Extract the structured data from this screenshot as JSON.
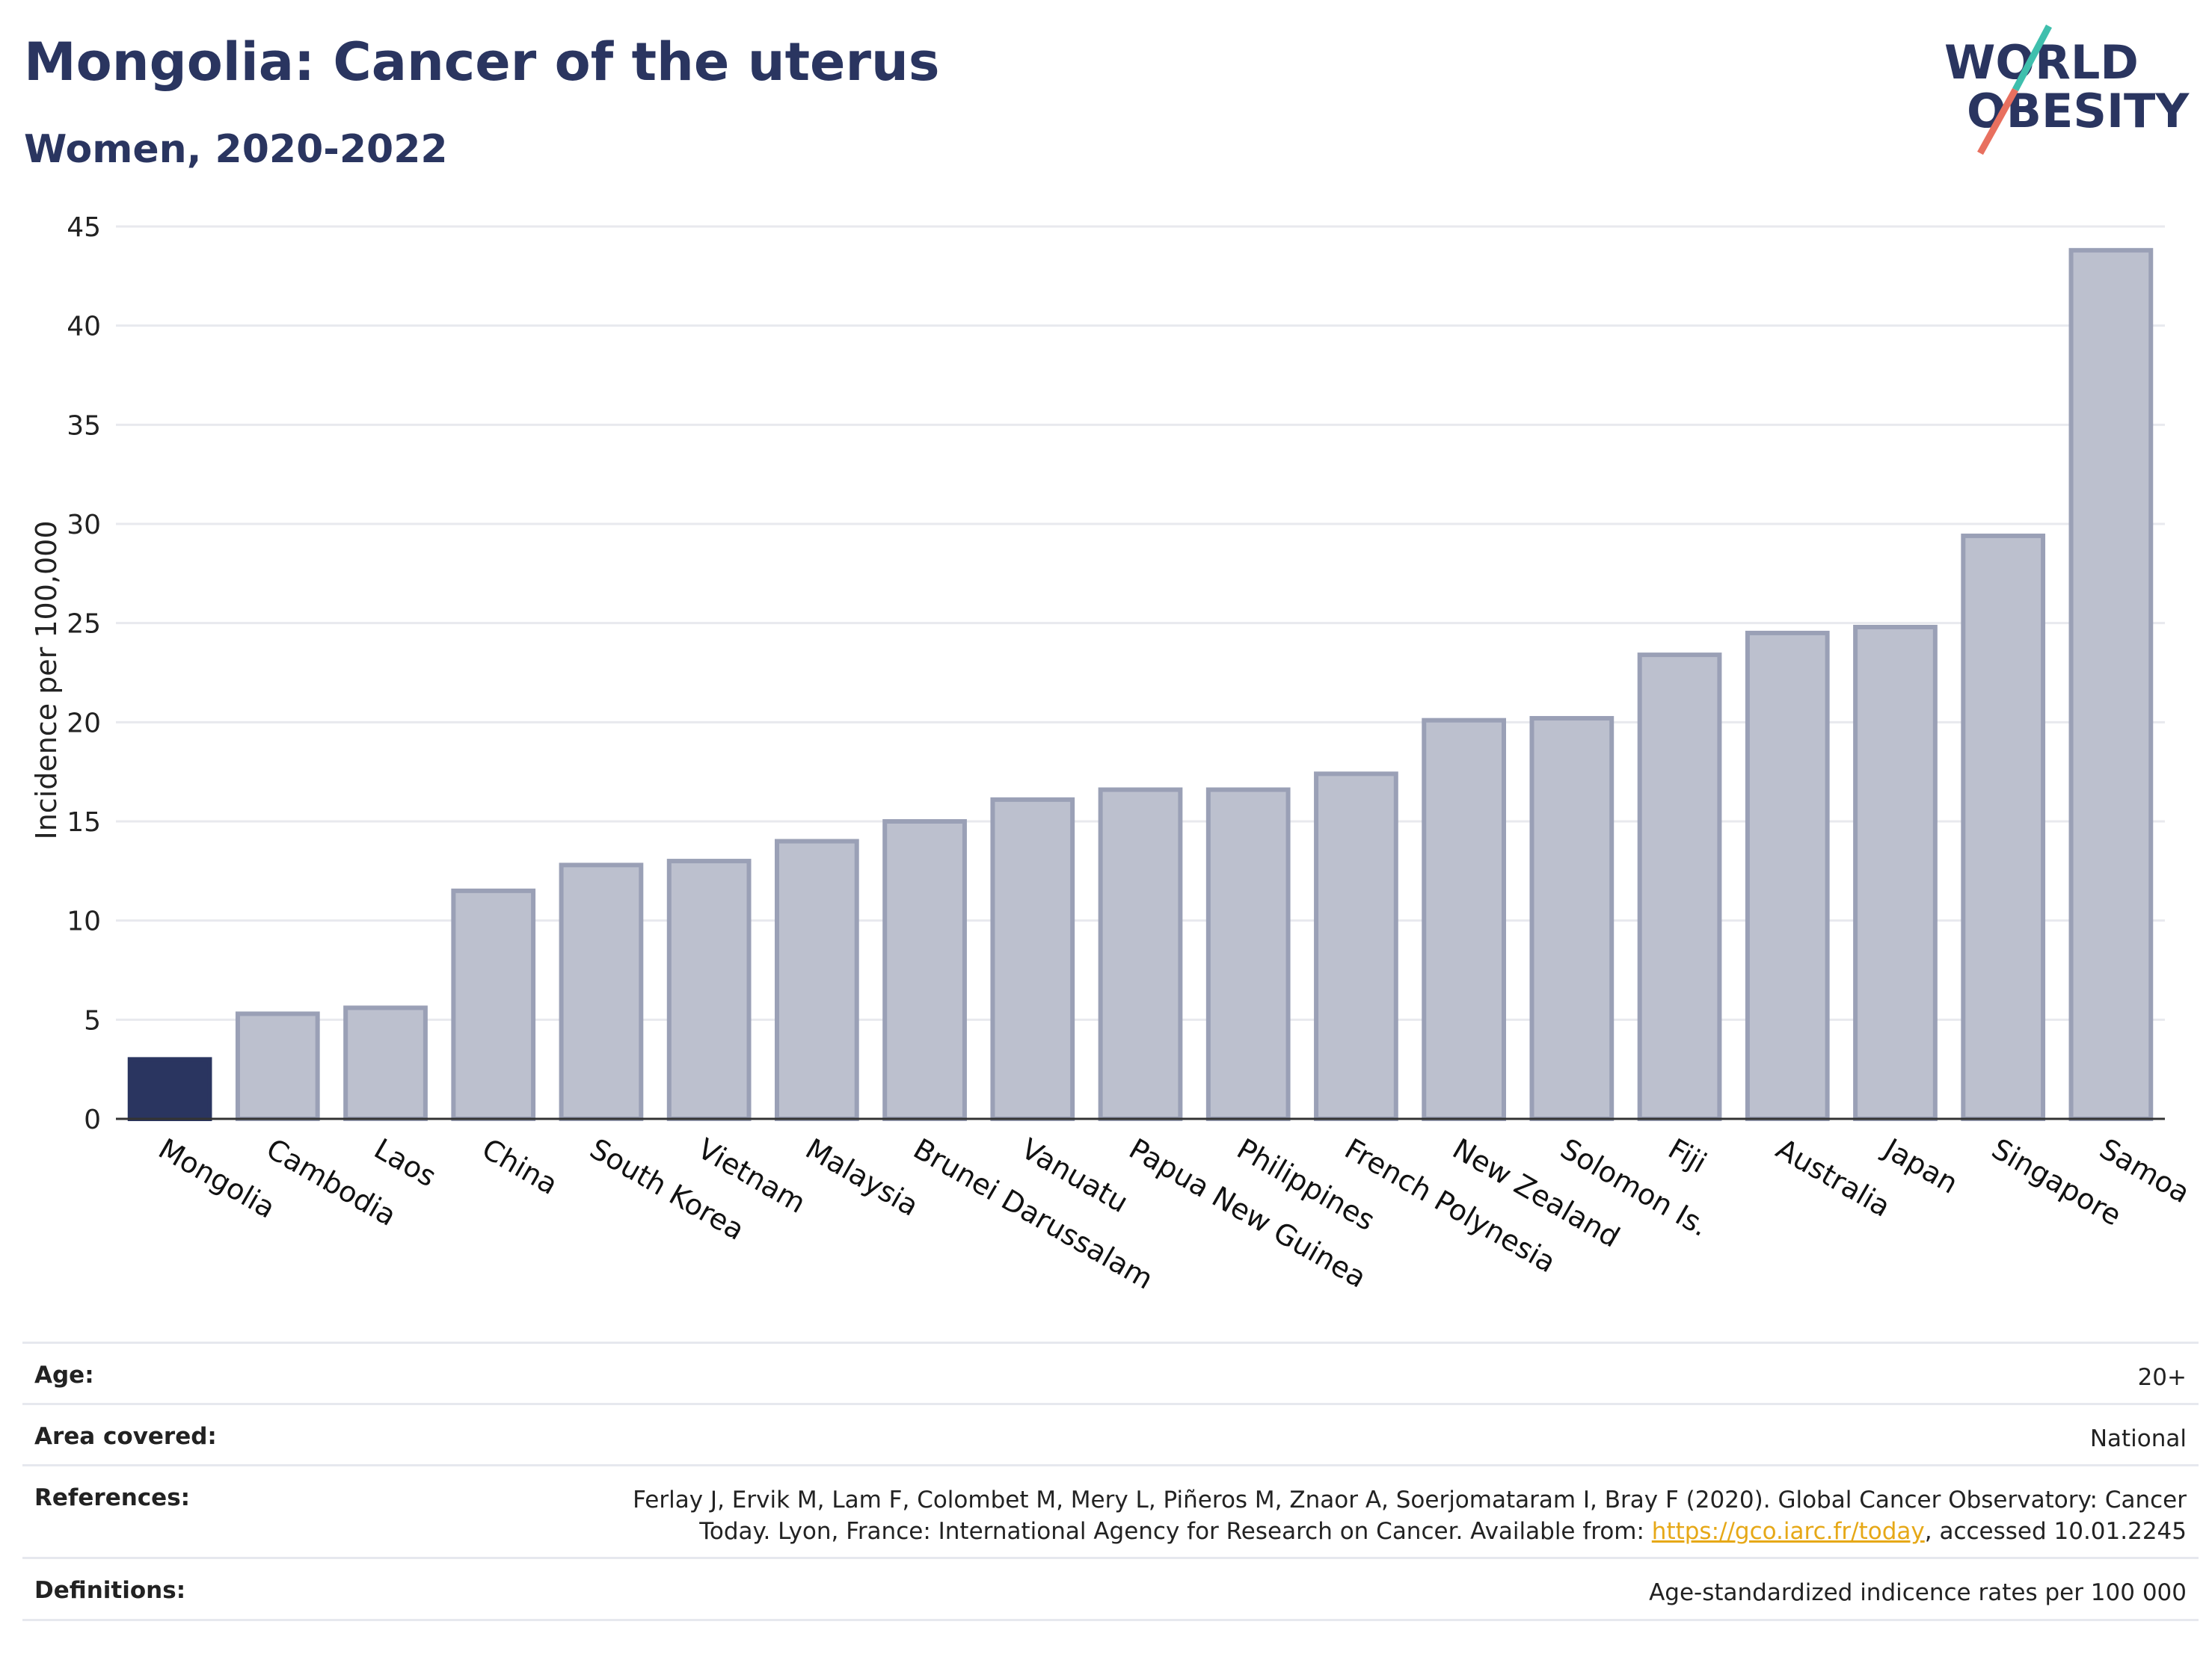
{
  "header": {
    "title": "Mongolia: Cancer of the uterus",
    "subtitle": "Women, 2020-2022"
  },
  "logo": {
    "line1": "WORLD",
    "line2": "OBESITY",
    "colors": {
      "text": "#2a3560",
      "slash_top": "#3fbfad",
      "slash_bottom": "#e8705f"
    }
  },
  "chart_data": {
    "type": "bar",
    "ylabel": "Incidence per 100,000",
    "xlabel": "",
    "ylim": [
      0,
      45
    ],
    "yticks": [
      0,
      5,
      10,
      15,
      20,
      25,
      30,
      35,
      40,
      45
    ],
    "grid": true,
    "highlight": "Mongolia",
    "colors": {
      "highlight": "#2a3560",
      "bar": "#bcc0ce",
      "bar_edge": "#9aa0b6"
    },
    "categories": [
      "Mongolia",
      "Cambodia",
      "Laos",
      "China",
      "South Korea",
      "Vietnam",
      "Malaysia",
      "Brunei Darussalam",
      "Vanuatu",
      "Papua New Guinea",
      "Philippines",
      "French Polynesia",
      "New Zealand",
      "Solomon Is.",
      "Fiji",
      "Australia",
      "Japan",
      "Singapore",
      "Samoa"
    ],
    "values": [
      3.0,
      5.3,
      5.6,
      11.5,
      12.8,
      13.0,
      14.0,
      15.0,
      16.1,
      16.6,
      16.6,
      17.4,
      20.1,
      20.2,
      23.4,
      24.5,
      24.8,
      29.4,
      43.8
    ]
  },
  "meta": {
    "age": {
      "label": "Age:",
      "value": "20+"
    },
    "area": {
      "label": "Area covered:",
      "value": "National"
    },
    "references": {
      "label": "References:",
      "line1": "Ferlay J, Ervik M, Lam F, Colombet M, Mery L, Piñeros M, Znaor A, Soerjomataram I, Bray F (2020). Global Cancer Observatory: Cancer",
      "line2_pre": "Today. Lyon, France: International Agency for Research on Cancer. Available from: ",
      "link": "https://gco.iarc.fr/today",
      "line2_post": ", accessed 10.01.2245"
    },
    "definitions": {
      "label": "Definitions:",
      "value": "Age-standardized indicence rates per 100 000"
    }
  }
}
